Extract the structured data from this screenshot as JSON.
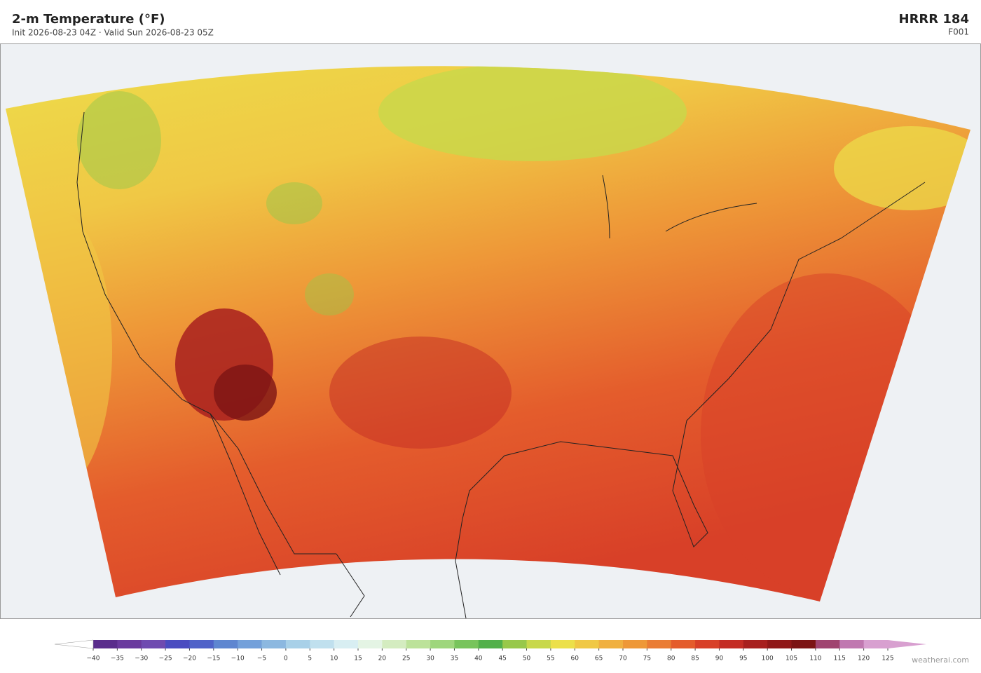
{
  "header": {
    "title": "2-m Temperature  (°F)",
    "subtitle": "Init 2026-08-23 04Z  ·  Valid Sun 2026-08-23 05Z",
    "model": "HRRR  184",
    "forecast_hour": "F001"
  },
  "colorbar": {
    "ticks": [
      {
        "value": -40,
        "label": "−40"
      },
      {
        "value": -35,
        "label": "−35"
      },
      {
        "value": -30,
        "label": "−30"
      },
      {
        "value": -25,
        "label": "−25"
      },
      {
        "value": -20,
        "label": "−20"
      },
      {
        "value": -15,
        "label": "−15"
      },
      {
        "value": -10,
        "label": "−10"
      },
      {
        "value": -5,
        "label": "−5"
      },
      0,
      5,
      10,
      15,
      20,
      25,
      30,
      35,
      40,
      45,
      50,
      55,
      60,
      65,
      70,
      75,
      80,
      85,
      90,
      95,
      100,
      105,
      110,
      115,
      120,
      125
    ],
    "colors": [
      "#5a2d8c",
      "#6a3a9e",
      "#6f4bb0",
      "#4a4cc0",
      "#4f62c8",
      "#5e86d0",
      "#73a0da",
      "#8cb8e0",
      "#a8d0e8",
      "#c0e0ee",
      "#d8eef2",
      "#e4f4e4",
      "#d4ecc0",
      "#bce29a",
      "#9ed67c",
      "#78c45c",
      "#52b04a",
      "#98c84a",
      "#c8d84a",
      "#ece04a",
      "#f0c845",
      "#f0b040",
      "#ee9838",
      "#ea7c34",
      "#e45c2c",
      "#d84028",
      "#c42c24",
      "#a8201e",
      "#901818",
      "#7c1414",
      "#a04470",
      "#c078b0",
      "#d8a0d0"
    ],
    "under_color": "#ffffff",
    "over_color": "#d8a0d0"
  },
  "footer": {
    "credit": "weatherai.com"
  }
}
